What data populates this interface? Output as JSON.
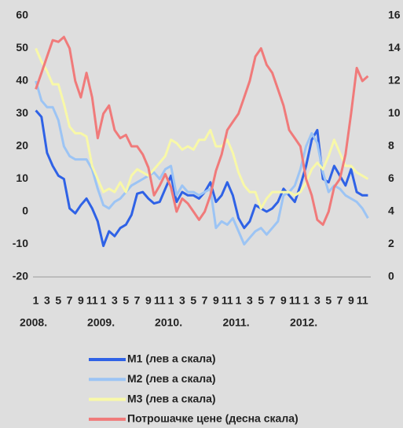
{
  "chart_data": {
    "type": "line",
    "categories": [
      "1",
      null,
      "3",
      null,
      "5",
      null,
      "7",
      null,
      "9",
      null,
      "11",
      null,
      "1",
      null,
      "3",
      null,
      "5",
      null,
      "7",
      null,
      "9",
      null,
      "11",
      null,
      "1",
      null,
      "3",
      null,
      "5",
      null,
      "7",
      null,
      "9",
      null,
      "11",
      null,
      "1",
      null,
      "3",
      null,
      "5",
      null,
      "7",
      null,
      "9",
      null,
      "11",
      null,
      "1",
      null,
      "3",
      null,
      "5",
      null,
      "7",
      null,
      "9",
      null,
      "11",
      null
    ],
    "years": [
      "2008.",
      "2009.",
      "2010.",
      "2011.",
      "2012."
    ],
    "ylim": [
      -20,
      60
    ],
    "yticks": [
      -20,
      -10,
      0,
      10,
      20,
      30,
      40,
      50,
      60
    ],
    "y2lim": [
      0,
      16
    ],
    "y2ticks": [
      0,
      2,
      4,
      6,
      8,
      10,
      12,
      14,
      16
    ],
    "series": [
      {
        "name": "M1 (лев а скала)",
        "color": "#2f62e6",
        "values": [
          31,
          29,
          18,
          14,
          11,
          10,
          1,
          -0.5,
          2,
          4,
          1,
          -3,
          -10.5,
          -6,
          -7.5,
          -5,
          -4,
          -1,
          5.5,
          6,
          4,
          2.5,
          3,
          7,
          11,
          3,
          6,
          5,
          5,
          4,
          6,
          9,
          3,
          5,
          9,
          5,
          -2,
          -5,
          -3,
          2,
          1,
          0,
          1,
          3,
          7,
          5,
          3,
          8,
          14,
          22,
          25,
          10,
          9,
          14,
          11,
          8,
          13,
          6,
          5,
          5
        ]
      },
      {
        "name": "M2 (лев а скала)",
        "color": "#9cc4f4",
        "values": [
          40,
          34,
          32,
          32,
          28,
          20,
          17,
          16,
          16,
          16,
          13,
          7,
          2,
          1,
          3,
          4,
          6,
          8,
          9,
          10,
          11,
          12,
          10,
          13,
          14,
          5,
          8,
          6,
          6,
          5,
          6,
          7,
          -5,
          -3,
          -4,
          -2,
          -6,
          -10,
          -8,
          -6,
          -5,
          -7,
          -5,
          -3,
          5,
          6,
          8,
          13,
          20,
          24,
          21,
          12,
          6,
          8,
          7,
          5,
          4,
          3,
          1,
          -2
        ]
      },
      {
        "name": "M3 (лев а скала)",
        "color": "#f8f8a8",
        "values": [
          50,
          46,
          43,
          39,
          39,
          33,
          26,
          24,
          24,
          23,
          14,
          10,
          6,
          7,
          6,
          9,
          6,
          11,
          13,
          12,
          11,
          13,
          15,
          17,
          22,
          21,
          19,
          20,
          19,
          22,
          22,
          25,
          20,
          20,
          22,
          18,
          12,
          8,
          6,
          6,
          1,
          4,
          6,
          6,
          6,
          6,
          5,
          6,
          9,
          13,
          15,
          13,
          17,
          22,
          18,
          14,
          14,
          12,
          11,
          10
        ]
      },
      {
        "name": "Потрошачке цене (десна скала)",
        "color": "#f07a7a",
        "axis": "y2",
        "values": [
          11.5,
          12.5,
          13.5,
          14.5,
          14.4,
          14.7,
          14,
          12,
          11,
          12.5,
          11,
          8.5,
          10,
          10.5,
          9,
          8.5,
          8.7,
          8,
          8,
          7.5,
          6.7,
          5,
          5.6,
          6.3,
          5.5,
          4,
          4.8,
          4.5,
          4,
          3.5,
          4,
          5,
          6.5,
          7.5,
          9,
          9.5,
          10,
          11,
          12,
          13.5,
          14,
          13,
          12.5,
          11.5,
          10.5,
          9,
          8.5,
          8,
          6,
          5,
          3.5,
          3.2,
          4,
          5.5,
          6,
          7.5,
          10,
          12.8,
          12,
          12.3
        ]
      }
    ]
  }
}
